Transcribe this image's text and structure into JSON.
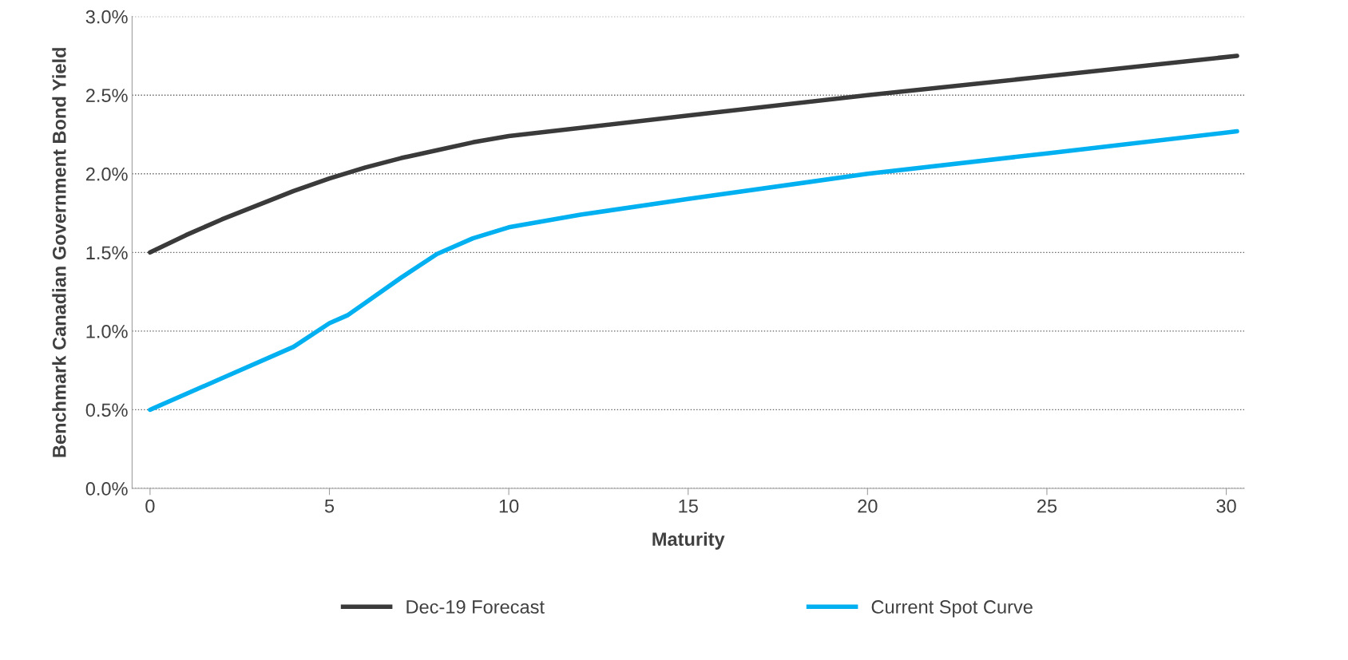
{
  "chart_data": {
    "type": "line",
    "xlabel": "Maturity",
    "ylabel": "Benchmark Canadian Government Bond Yield",
    "xlim": [
      -0.5,
      30.5
    ],
    "xticks": [
      0,
      5,
      10,
      15,
      20,
      25,
      30
    ],
    "ylim": [
      0,
      3.0
    ],
    "yticks": [
      {
        "value": 0,
        "label": "0.0%"
      },
      {
        "value": 0.5,
        "label": "0.5%"
      },
      {
        "value": 1.0,
        "label": "1.0%"
      },
      {
        "value": 1.5,
        "label": "1.5%"
      },
      {
        "value": 2.0,
        "label": "2.0%"
      },
      {
        "value": 2.5,
        "label": "2.5%"
      },
      {
        "value": 3.0,
        "label": "3.0%"
      }
    ],
    "grid": "y",
    "legend": "bottom",
    "marker": "none",
    "line_style": "solid",
    "series": [
      {
        "name": "Dec-19 Forecast",
        "color": "#3a3a3a",
        "x": [
          0,
          1,
          2,
          3,
          4,
          5,
          6,
          7,
          8,
          9,
          10,
          15,
          20,
          25,
          30.3
        ],
        "values": [
          1.5,
          1.61,
          1.71,
          1.8,
          1.89,
          1.97,
          2.04,
          2.1,
          2.15,
          2.2,
          2.24,
          2.37,
          2.5,
          2.62,
          2.75
        ]
      },
      {
        "name": "Current Spot Curve",
        "color": "#00b0f0",
        "x": [
          0,
          2,
          4,
          5,
          5.5,
          6,
          7,
          8,
          9,
          10,
          12,
          15,
          20,
          25,
          30.3
        ],
        "values": [
          0.5,
          0.7,
          0.9,
          1.05,
          1.1,
          1.18,
          1.34,
          1.49,
          1.59,
          1.66,
          1.74,
          1.84,
          2.0,
          2.13,
          2.27
        ]
      }
    ]
  }
}
